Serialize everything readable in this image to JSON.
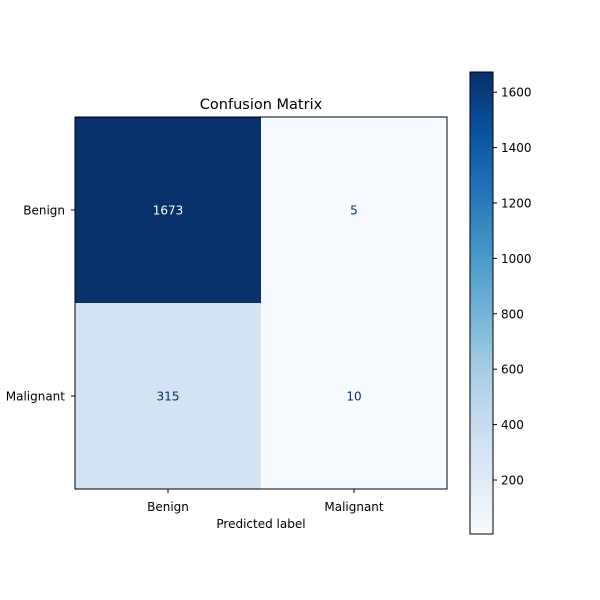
{
  "chart_data": {
    "type": "heatmap",
    "title": "Confusion Matrix",
    "xlabel": "Predicted label",
    "ylabel": "",
    "x_categories": [
      "Benign",
      "Malignant"
    ],
    "y_categories": [
      "Benign",
      "Malignant"
    ],
    "values": [
      [
        1673,
        5
      ],
      [
        315,
        10
      ]
    ],
    "colormap": "Blues",
    "colorbar": {
      "range": [
        5,
        1673
      ],
      "ticks": [
        200,
        400,
        600,
        800,
        1000,
        1200,
        1400,
        1600
      ],
      "tick_labels": [
        "200",
        "400",
        "600",
        "800",
        "1000",
        "1200",
        "1400",
        "1600"
      ]
    },
    "text_colors": {
      "dark_cell": "#ffffff",
      "light_cell": "#08306b"
    }
  }
}
